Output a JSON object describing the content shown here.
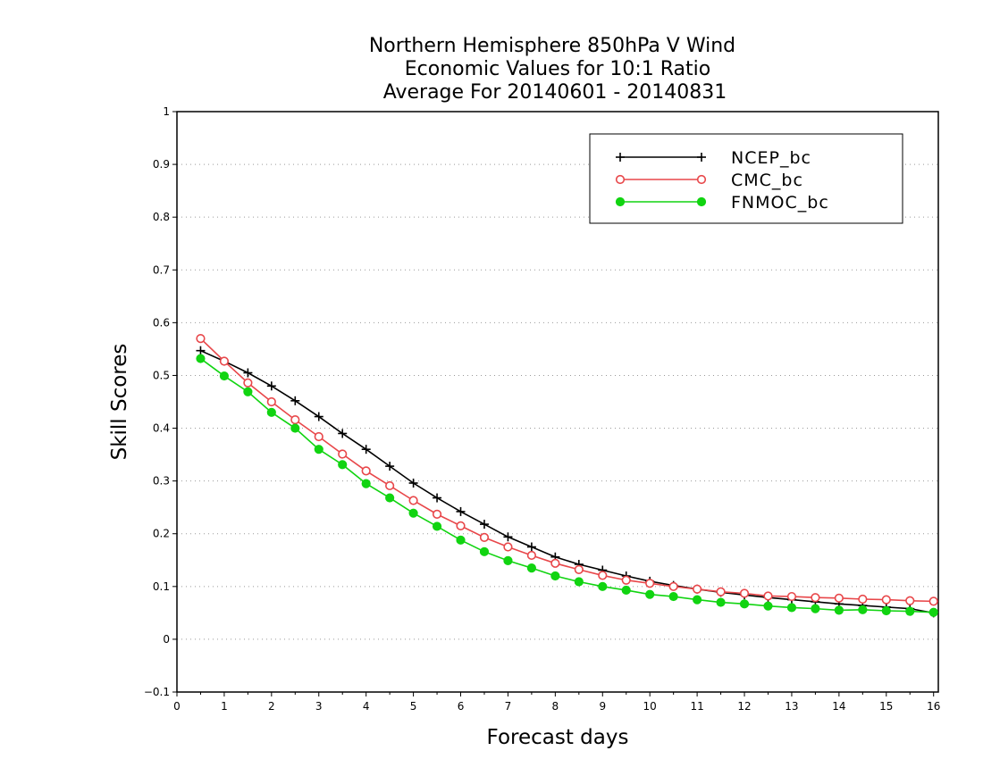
{
  "chart_data": {
    "type": "line",
    "title": [
      "Northern Hemisphere 850hPa V Wind",
      "Economic Values for 10:1 Ratio",
      "Average For 20140601 - 20140831"
    ],
    "xlabel": "Forecast days",
    "ylabel": "Skill Scores",
    "xlim": [
      0,
      16.1
    ],
    "ylim": [
      -0.1,
      1
    ],
    "x_ticks": [
      0,
      1,
      2,
      3,
      4,
      5,
      6,
      7,
      8,
      9,
      10,
      11,
      12,
      13,
      14,
      15,
      16
    ],
    "x_tick_labels": [
      "0",
      "1",
      "2",
      "3",
      "4",
      "5",
      "6",
      "7",
      "8",
      "9",
      "10",
      "11",
      "12",
      "13",
      "14",
      "15",
      "16"
    ],
    "y_ticks": [
      -0.1,
      0,
      0.1,
      0.2,
      0.3,
      0.4,
      0.5,
      0.6,
      0.7,
      0.8,
      0.9,
      1
    ],
    "y_tick_labels": [
      "−0.1",
      "0",
      "0.1",
      "0.2",
      "0.3",
      "0.4",
      "0.5",
      "0.6",
      "0.7",
      "0.8",
      "0.9",
      "1"
    ],
    "grid": true,
    "legend_position": "top-right",
    "x": [
      0.5,
      1,
      1.5,
      2,
      2.5,
      3,
      3.5,
      4,
      4.5,
      5,
      5.5,
      6,
      6.5,
      7,
      7.5,
      8,
      8.5,
      9,
      9.5,
      10,
      10.5,
      11,
      11.5,
      12,
      12.5,
      13,
      13.5,
      14,
      14.5,
      15,
      15.5,
      16
    ],
    "series": [
      {
        "name": "NCEP_bc",
        "color": "#000000",
        "marker": "plus",
        "values": [
          0.547,
          0.527,
          0.505,
          0.48,
          0.452,
          0.422,
          0.39,
          0.36,
          0.328,
          0.296,
          0.268,
          0.242,
          0.218,
          0.194,
          0.175,
          0.156,
          0.142,
          0.131,
          0.12,
          0.11,
          0.102,
          0.095,
          0.089,
          0.084,
          0.079,
          0.075,
          0.071,
          0.067,
          0.064,
          0.061,
          0.058,
          0.05
        ]
      },
      {
        "name": "CMC_bc",
        "color": "#e8474a",
        "marker": "open-circle",
        "values": [
          0.57,
          0.527,
          0.486,
          0.45,
          0.416,
          0.384,
          0.351,
          0.319,
          0.291,
          0.263,
          0.237,
          0.215,
          0.193,
          0.175,
          0.159,
          0.144,
          0.132,
          0.121,
          0.112,
          0.106,
          0.1,
          0.095,
          0.09,
          0.087,
          0.082,
          0.081,
          0.079,
          0.078,
          0.076,
          0.075,
          0.073,
          0.072
        ]
      },
      {
        "name": "FNMOC_bc",
        "color": "#11d411",
        "marker": "filled-circle",
        "values": [
          0.532,
          0.499,
          0.469,
          0.43,
          0.4,
          0.36,
          0.331,
          0.295,
          0.268,
          0.239,
          0.214,
          0.188,
          0.166,
          0.149,
          0.135,
          0.12,
          0.109,
          0.1,
          0.093,
          0.085,
          0.081,
          0.075,
          0.07,
          0.067,
          0.063,
          0.06,
          0.058,
          0.055,
          0.056,
          0.054,
          0.053,
          0.051
        ]
      }
    ]
  }
}
